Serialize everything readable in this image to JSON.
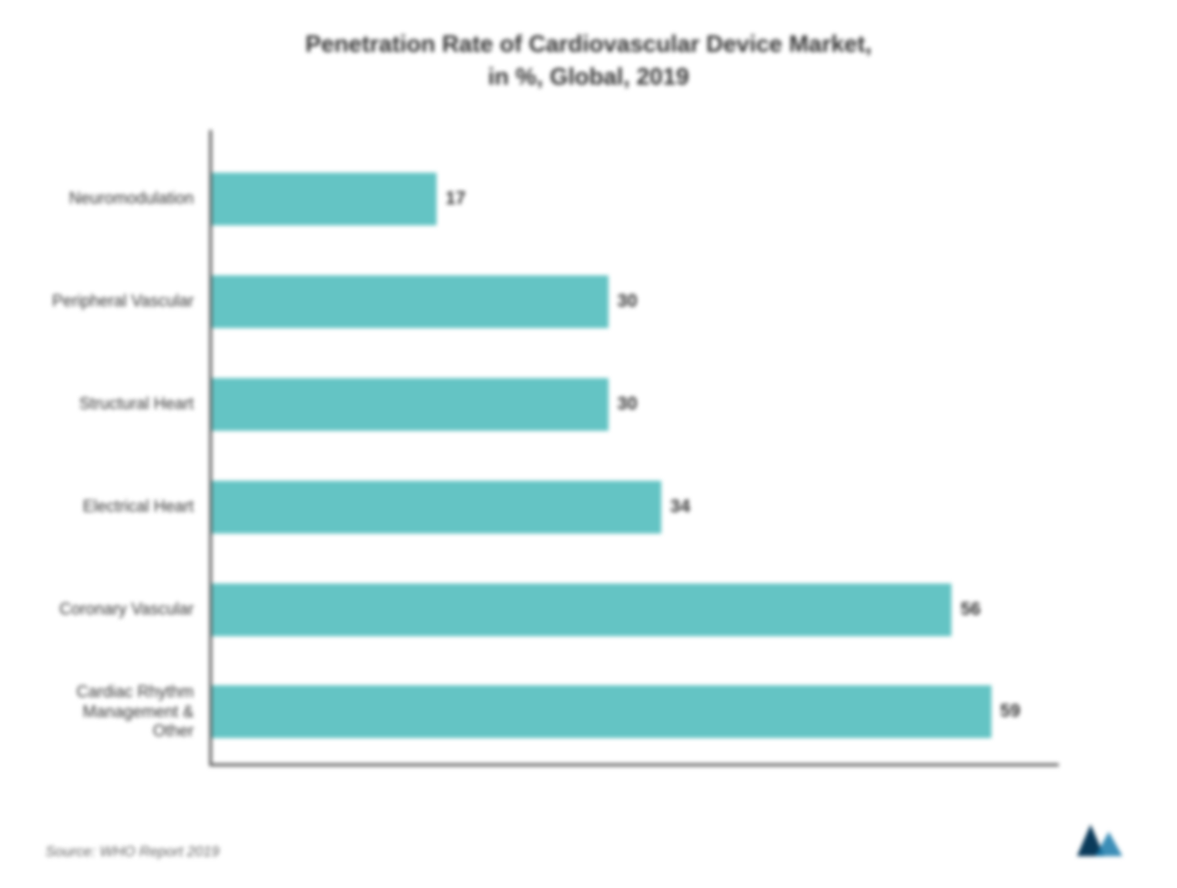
{
  "chart": {
    "type": "bar-horizontal",
    "title_line1": "Penetration Rate of Cardiovascular Device Market,",
    "title_line2": "in %, Global, 2019",
    "title_fontsize": 26,
    "title_color": "#353535",
    "bar_color": "#64c4c4",
    "axis_color": "#555555",
    "background_color": "#ffffff",
    "label_fontsize": 18,
    "value_fontsize": 20,
    "xlim_max": 100,
    "categories": [
      {
        "label": "Neuromodulation",
        "value": 17
      },
      {
        "label": "Peripheral Vascular",
        "value": 30
      },
      {
        "label": "Structural Heart",
        "value": 30
      },
      {
        "label": "Electrical Heart",
        "value": 34
      },
      {
        "label": "Coronary Vascular",
        "value": 56
      },
      {
        "label": "Cardiac Rhythm Management & Other",
        "value": 59
      }
    ],
    "source": "Source: WHO Report 2019"
  },
  "logo": {
    "name": "mordor-intelligence-logo",
    "color_dark": "#0a3a5a",
    "color_light": "#1a7aaa"
  }
}
